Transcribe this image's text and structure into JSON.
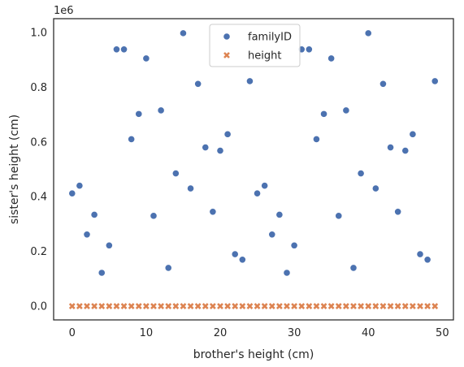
{
  "chart_data": {
    "type": "scatter",
    "title": "",
    "xlabel": "brother's height (cm)",
    "ylabel": "sister's height (cm)",
    "y_offset_label": "1e6",
    "xlim": [
      -2.5,
      51.5
    ],
    "ylim": [
      -50000,
      1050000
    ],
    "xticks": [
      0,
      10,
      20,
      30,
      40,
      50
    ],
    "yticks": [
      0,
      200000,
      400000,
      600000,
      800000,
      1000000
    ],
    "xtick_labels": [
      "0",
      "10",
      "20",
      "30",
      "40",
      "50"
    ],
    "ytick_labels": [
      "0.0",
      "0.2",
      "0.4",
      "0.6",
      "0.8",
      "1.0"
    ],
    "grid": false,
    "legend_position": "top-center",
    "series": [
      {
        "name": "familyID",
        "marker": "circle",
        "color": "#4c72b0",
        "x": [
          0,
          1,
          2,
          3,
          4,
          5,
          6,
          7,
          8,
          9,
          10,
          11,
          12,
          13,
          14,
          15,
          16,
          17,
          18,
          19,
          20,
          21,
          22,
          23,
          24,
          25,
          26,
          27,
          28,
          29,
          30,
          31,
          32,
          33,
          34,
          35,
          36,
          37,
          38,
          39,
          40,
          41,
          42,
          43,
          44,
          45,
          46,
          47,
          48,
          49
        ],
        "y": [
          412000,
          440000,
          262000,
          334000,
          122000,
          222000,
          938000,
          938000,
          610000,
          702000,
          905000,
          330000,
          715000,
          140000,
          485000,
          997000,
          430000,
          812000,
          580000,
          345000,
          568000,
          628000,
          190000,
          170000,
          822000,
          412000,
          440000,
          262000,
          334000,
          122000,
          222000,
          938000,
          938000,
          610000,
          702000,
          905000,
          330000,
          715000,
          140000,
          485000,
          997000,
          430000,
          812000,
          580000,
          345000,
          568000,
          628000,
          190000,
          170000,
          822000
        ]
      },
      {
        "name": "height",
        "marker": "x",
        "color": "#dd8452",
        "x": [
          0,
          1,
          2,
          3,
          4,
          5,
          6,
          7,
          8,
          9,
          10,
          11,
          12,
          13,
          14,
          15,
          16,
          17,
          18,
          19,
          20,
          21,
          22,
          23,
          24,
          25,
          26,
          27,
          28,
          29,
          30,
          31,
          32,
          33,
          34,
          35,
          36,
          37,
          38,
          39,
          40,
          41,
          42,
          43,
          44,
          45,
          46,
          47,
          48,
          49
        ],
        "y": [
          170,
          170,
          170,
          170,
          170,
          170,
          170,
          170,
          170,
          170,
          170,
          170,
          170,
          170,
          170,
          170,
          170,
          170,
          170,
          170,
          170,
          170,
          170,
          170,
          170,
          170,
          170,
          170,
          170,
          170,
          170,
          170,
          170,
          170,
          170,
          170,
          170,
          170,
          170,
          170,
          170,
          170,
          170,
          170,
          170,
          170,
          170,
          170,
          170,
          170
        ]
      }
    ]
  }
}
